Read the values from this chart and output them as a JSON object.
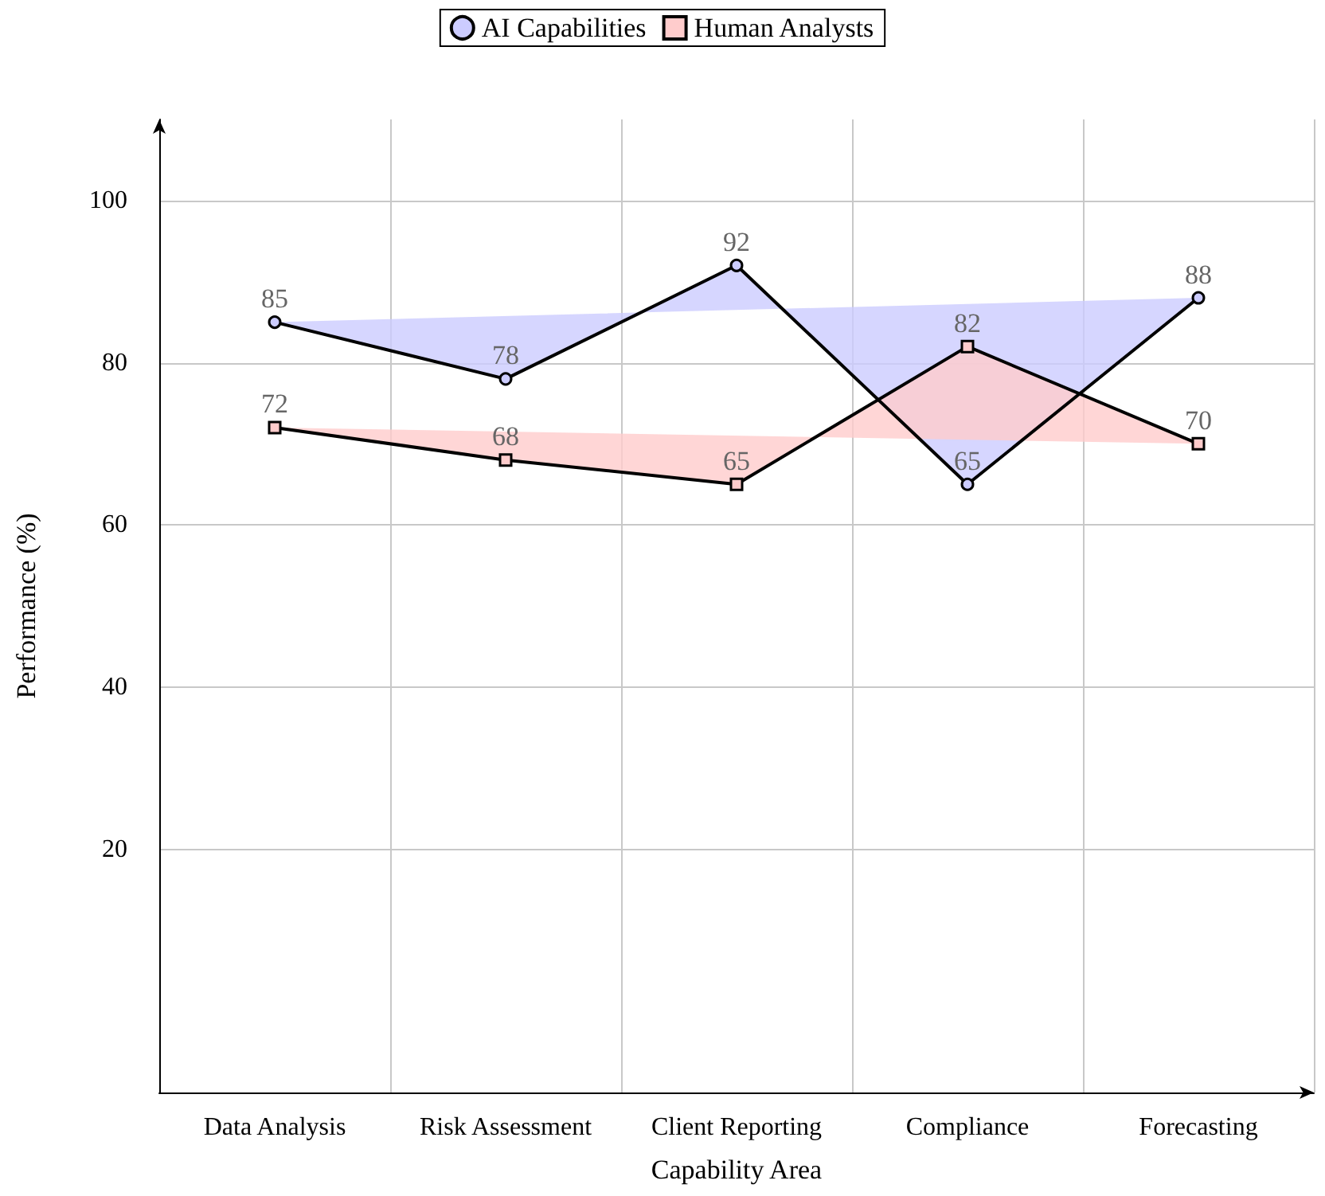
{
  "chart_data": {
    "type": "area",
    "xlabel": "Capability Area",
    "ylabel": "Performance (%)",
    "categories": [
      "Data Analysis",
      "Risk Assessment",
      "Client Reporting",
      "Compliance",
      "Forecasting"
    ],
    "series": [
      {
        "name": "AI Capabilities",
        "color": "#ccccff",
        "marker": "circle",
        "values": [
          85,
          78,
          92,
          65,
          88
        ]
      },
      {
        "name": "Human Analysts",
        "color": "#ffcccc",
        "marker": "square",
        "values": [
          72,
          68,
          65,
          82,
          70
        ]
      }
    ],
    "ylim": [
      -10,
      110
    ],
    "yticks": [
      20,
      40,
      60,
      80,
      100
    ],
    "grid": true,
    "legend": "top",
    "data_labels": true
  }
}
